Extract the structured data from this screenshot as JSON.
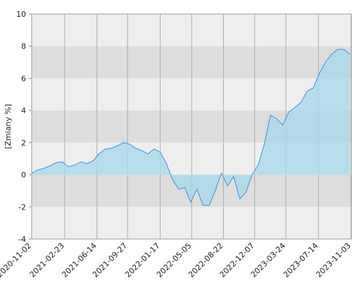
{
  "chart_data": {
    "type": "area",
    "y_label": "[Zmiany %]",
    "x": [
      "2020-11-02",
      "2020-11-23",
      "2020-12-14",
      "2021-01-04",
      "2021-01-25",
      "2021-02-15",
      "2021-03-08",
      "2021-03-29",
      "2021-04-19",
      "2021-05-10",
      "2021-05-31",
      "2021-06-21",
      "2021-07-12",
      "2021-08-02",
      "2021-08-23",
      "2021-09-13",
      "2021-10-04",
      "2021-10-25",
      "2021-11-15",
      "2021-12-06",
      "2021-12-27",
      "2022-01-17",
      "2022-02-07",
      "2022-02-28",
      "2022-03-21",
      "2022-04-11",
      "2022-05-02",
      "2022-05-23",
      "2022-06-13",
      "2022-07-04",
      "2022-07-25",
      "2022-08-15",
      "2022-09-05",
      "2022-09-26",
      "2022-10-17",
      "2022-11-07",
      "2022-11-28",
      "2022-12-19",
      "2023-01-09",
      "2023-01-30",
      "2023-02-20",
      "2023-03-13",
      "2023-04-03",
      "2023-04-24",
      "2023-05-15",
      "2023-06-05",
      "2023-06-26",
      "2023-07-17",
      "2023-08-07",
      "2023-08-28",
      "2023-09-18",
      "2023-10-09",
      "2023-10-30"
    ],
    "series": [
      {
        "color": "#3d8fe0",
        "fill": "#a9d9ec",
        "values": [
          0.1,
          0.3,
          0.4,
          0.55,
          0.75,
          0.8,
          0.5,
          0.6,
          0.8,
          0.7,
          0.85,
          1.3,
          1.6,
          1.65,
          1.8,
          2.0,
          1.9,
          1.65,
          1.5,
          1.3,
          1.6,
          1.4,
          0.7,
          -0.3,
          -0.9,
          -0.8,
          -1.7,
          -0.9,
          -1.9,
          -1.9,
          -1.0,
          0.1,
          -0.7,
          -0.1,
          -1.5,
          -1.1,
          0.0,
          0.6,
          1.9,
          3.7,
          3.5,
          3.1,
          3.9,
          4.2,
          4.5,
          5.2,
          5.4,
          6.3,
          7.0,
          7.5,
          7.8,
          7.8,
          7.5
        ]
      }
    ],
    "xlim": [
      "2020-11-02",
      "2023-11-06"
    ],
    "xticks": [
      "2020-11-02",
      "2021-02-23",
      "2021-06-14",
      "2021-09-27",
      "2022-01-17",
      "2022-05-05",
      "2022-08-22",
      "2022-12-07",
      "2023-03-24",
      "2023-07-14",
      "2023-11-03"
    ],
    "ylim": [
      -4,
      10
    ],
    "yticks": [
      -4,
      -2,
      0,
      2,
      4,
      6,
      8,
      10
    ],
    "grid": true,
    "band_colors": [
      "#eeeeee",
      "#dddddd"
    ]
  }
}
